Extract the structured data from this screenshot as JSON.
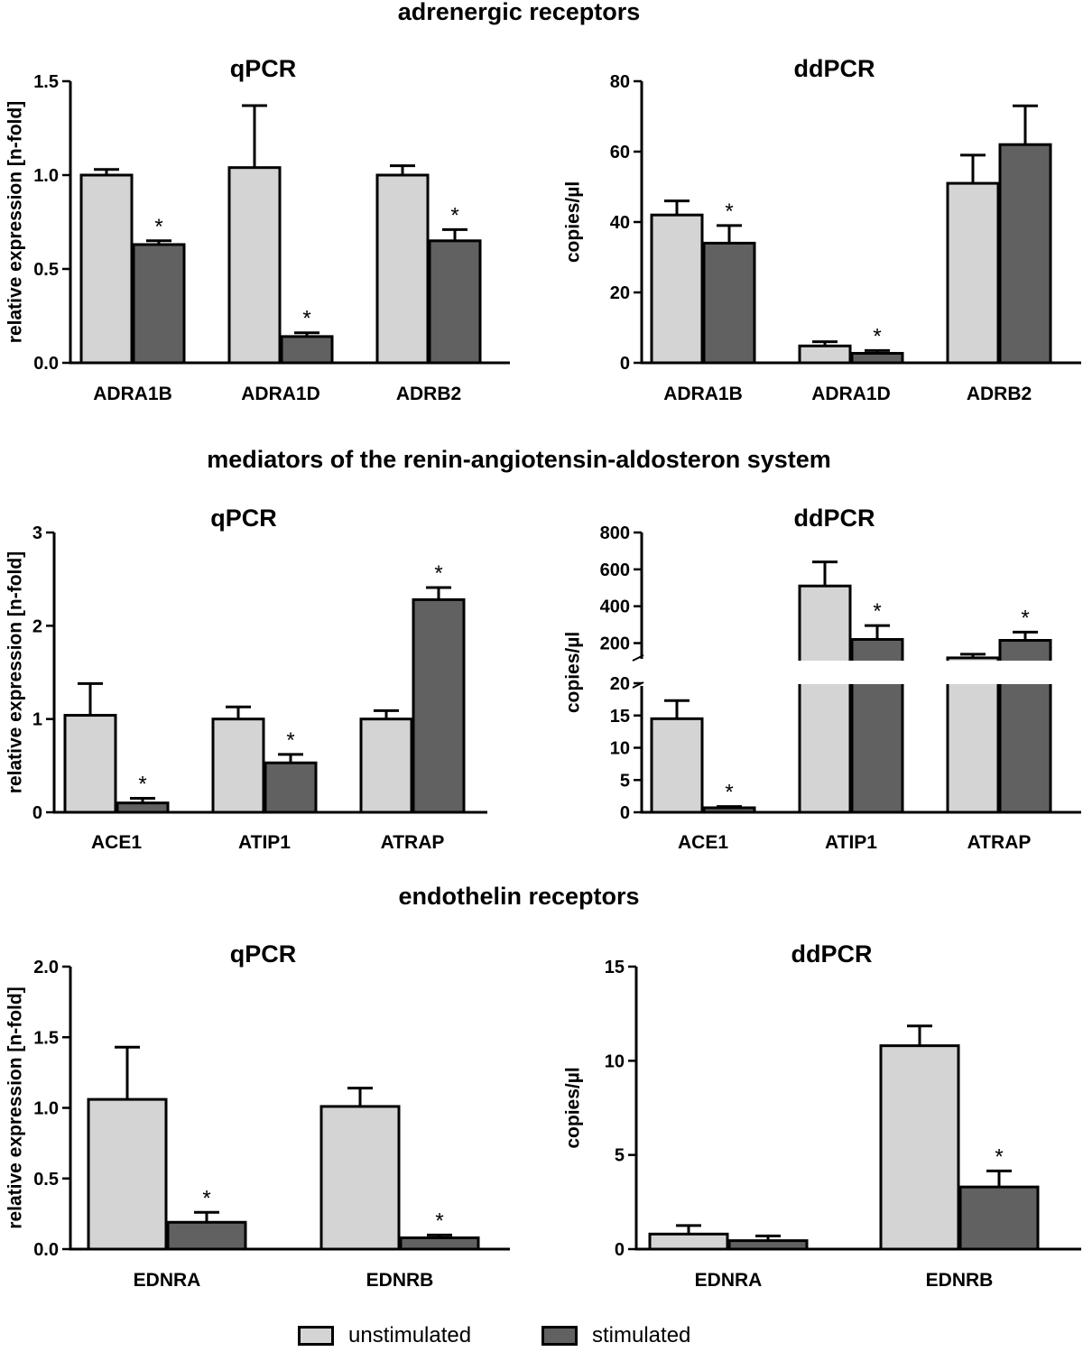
{
  "sections": [
    {
      "title": "adrenergic receptors"
    },
    {
      "title": "mediators of the renin-angiotensin-aldosteron system"
    },
    {
      "title": "endothelin receptors"
    }
  ],
  "legend": {
    "unstimulated": {
      "label": "unstimulated",
      "color": "#d4d4d4"
    },
    "stimulated": {
      "label": "stimulated",
      "color": "#616161"
    }
  },
  "chart_data": [
    {
      "type": "bar",
      "title": "qPCR",
      "ylabel": "relative expression [n-fold]",
      "categories": [
        "ADRA1B",
        "ADRA1D",
        "ADRB2"
      ],
      "ylim": [
        0,
        1.5
      ],
      "yticks": [
        "0.0",
        "0.5",
        "1.0",
        "1.5"
      ],
      "series": [
        {
          "name": "unstimulated",
          "values": [
            1.0,
            1.04,
            1.0
          ],
          "errors": [
            0.03,
            0.33,
            0.05
          ],
          "significant": [
            false,
            false,
            false
          ]
        },
        {
          "name": "stimulated",
          "values": [
            0.63,
            0.14,
            0.65
          ],
          "errors": [
            0.02,
            0.02,
            0.06
          ],
          "significant": [
            true,
            true,
            true
          ]
        }
      ],
      "annotation": "*"
    },
    {
      "type": "bar",
      "title": "ddPCR",
      "ylabel": "copies/µl",
      "categories": [
        "ADRA1B",
        "ADRA1D",
        "ADRB2"
      ],
      "ylim": [
        0,
        80
      ],
      "yticks": [
        "0",
        "20",
        "40",
        "60",
        "80"
      ],
      "series": [
        {
          "name": "unstimulated",
          "values": [
            42,
            4.8,
            51
          ],
          "errors": [
            4,
            1.2,
            8
          ],
          "significant": [
            false,
            false,
            false
          ]
        },
        {
          "name": "stimulated",
          "values": [
            34,
            2.7,
            62
          ],
          "errors": [
            5,
            0.8,
            11
          ],
          "significant": [
            true,
            true,
            false
          ]
        }
      ],
      "annotation": "*"
    },
    {
      "type": "bar",
      "title": "qPCR",
      "ylabel": "relative expression [n-fold]",
      "categories": [
        "ACE1",
        "ATIP1",
        "ATRAP"
      ],
      "ylim": [
        0,
        3
      ],
      "yticks": [
        "0",
        "1",
        "2",
        "3"
      ],
      "series": [
        {
          "name": "unstimulated",
          "values": [
            1.04,
            1.0,
            1.0
          ],
          "errors": [
            0.34,
            0.13,
            0.09
          ],
          "significant": [
            false,
            false,
            false
          ]
        },
        {
          "name": "stimulated",
          "values": [
            0.1,
            0.53,
            2.28
          ],
          "errors": [
            0.05,
            0.09,
            0.13
          ],
          "significant": [
            true,
            true,
            true
          ]
        }
      ],
      "annotation": "*"
    },
    {
      "type": "bar",
      "title": "ddPCR",
      "ylabel": "copies/µl",
      "broken_axis": true,
      "categories": [
        "ACE1",
        "ATIP1",
        "ATRAP"
      ],
      "ylim_lower": [
        0,
        20
      ],
      "yticks_lower": [
        "0",
        "5",
        "10",
        "15",
        "20"
      ],
      "ylim_upper": [
        100,
        800
      ],
      "yticks_upper": [
        "200",
        "400",
        "600",
        "800"
      ],
      "series": [
        {
          "name": "unstimulated",
          "values": [
            14.5,
            510,
            120
          ],
          "errors": [
            2.8,
            130,
            20
          ],
          "significant": [
            false,
            false,
            false
          ]
        },
        {
          "name": "stimulated",
          "values": [
            0.7,
            220,
            215
          ],
          "errors": [
            0.2,
            75,
            45
          ],
          "significant": [
            true,
            true,
            true
          ]
        }
      ],
      "annotation": "*"
    },
    {
      "type": "bar",
      "title": "qPCR",
      "ylabel": "relative expression [n-fold]",
      "categories": [
        "EDNRA",
        "EDNRB"
      ],
      "ylim": [
        0,
        2.0
      ],
      "yticks": [
        "0.0",
        "0.5",
        "1.0",
        "1.5",
        "2.0"
      ],
      "series": [
        {
          "name": "unstimulated",
          "values": [
            1.06,
            1.01
          ],
          "errors": [
            0.37,
            0.13
          ],
          "significant": [
            false,
            false
          ]
        },
        {
          "name": "stimulated",
          "values": [
            0.19,
            0.08
          ],
          "errors": [
            0.07,
            0.02
          ],
          "significant": [
            true,
            true
          ]
        }
      ],
      "annotation": "*"
    },
    {
      "type": "bar",
      "title": "ddPCR",
      "ylabel": "copies/µl",
      "categories": [
        "EDNRA",
        "EDNRB"
      ],
      "ylim": [
        0,
        15
      ],
      "yticks": [
        "0",
        "5",
        "10",
        "15"
      ],
      "series": [
        {
          "name": "unstimulated",
          "values": [
            0.8,
            10.8
          ],
          "errors": [
            0.45,
            1.05
          ],
          "significant": [
            false,
            false
          ]
        },
        {
          "name": "stimulated",
          "values": [
            0.45,
            3.3
          ],
          "errors": [
            0.25,
            0.85
          ],
          "significant": [
            false,
            true
          ]
        }
      ],
      "annotation": "*"
    }
  ]
}
